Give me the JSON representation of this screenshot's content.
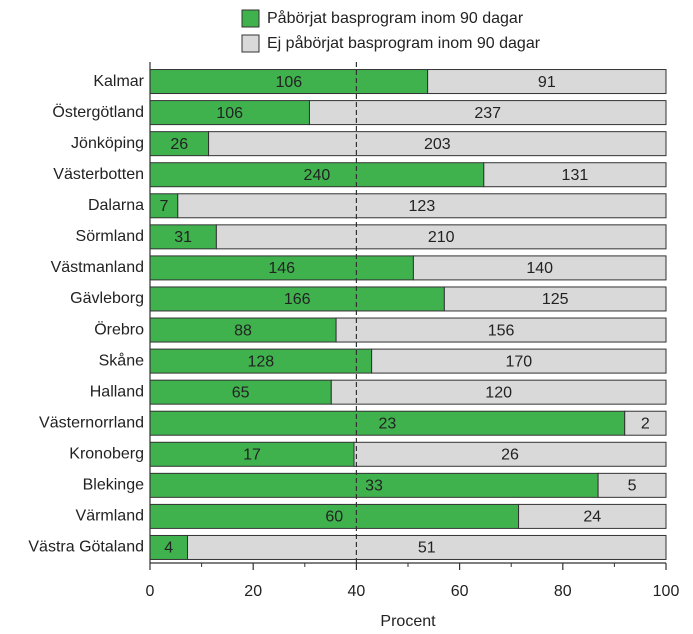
{
  "chart_data": {
    "type": "stacked_percent_barh",
    "categories": [
      "Kalmar",
      "Östergötland",
      "Jönköping",
      "Västerbotten",
      "Dalarna",
      "Sörmland",
      "Västmanland",
      "Gävleborg",
      "Örebro",
      "Skåne",
      "Halland",
      "Västernorrland",
      "Kronoberg",
      "Blekinge",
      "Värmland",
      "Västra Götaland"
    ],
    "series": [
      {
        "name": "Påbörjat basprogram inom 90 dagar",
        "color": "#3fb24e",
        "values": [
          106,
          106,
          26,
          240,
          7,
          31,
          146,
          166,
          88,
          128,
          65,
          23,
          17,
          33,
          60,
          4
        ]
      },
      {
        "name": "Ej påbörjat basprogram inom 90 dagar",
        "color": "#d9d9d9",
        "values": [
          91,
          237,
          203,
          131,
          123,
          210,
          140,
          125,
          156,
          170,
          120,
          2,
          26,
          5,
          24,
          51
        ]
      }
    ],
    "x_label": "Procent",
    "xlim": [
      0,
      100
    ],
    "xticks": [
      0,
      20,
      40,
      60,
      80,
      100
    ],
    "minor_xticks": [
      10,
      30,
      50,
      70,
      90
    ],
    "reference_line": 40
  }
}
